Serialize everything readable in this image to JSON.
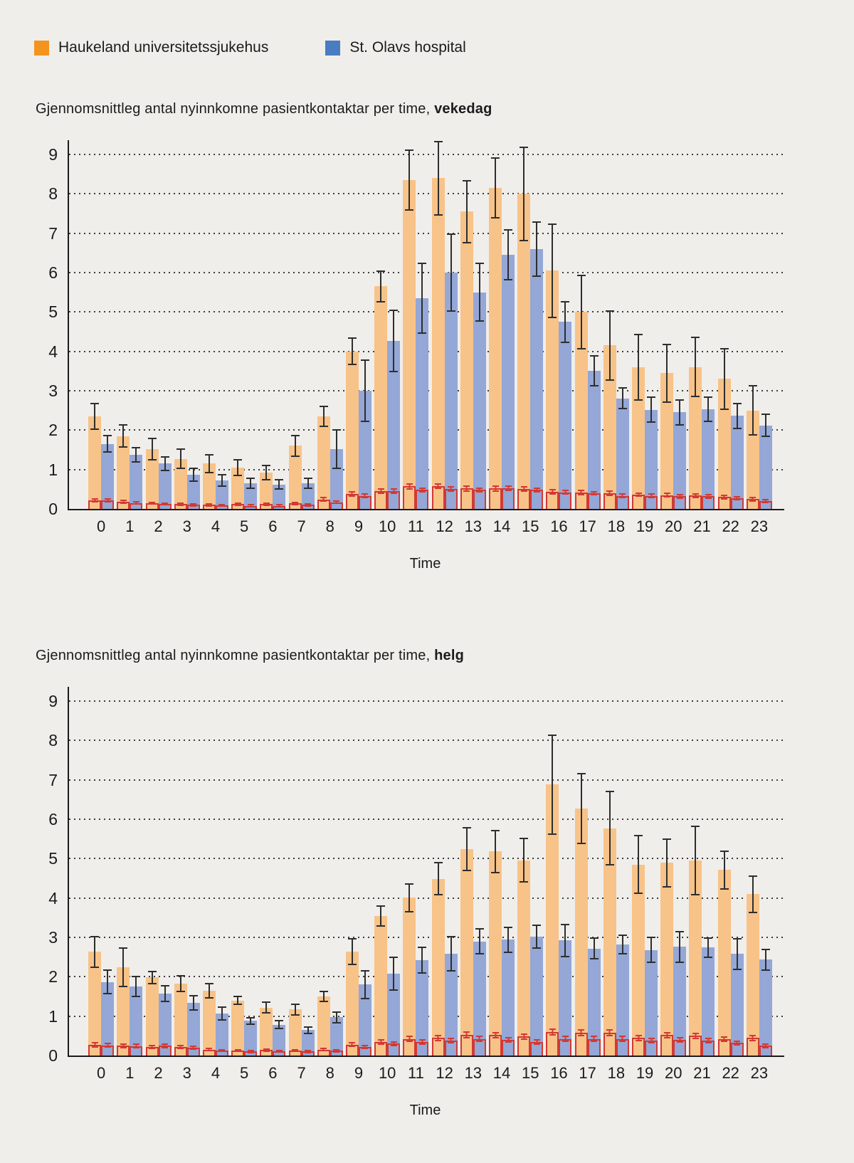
{
  "colors": {
    "background": "#f0eeeb",
    "haukeland_legend": "#f3941f",
    "stolavs_legend": "#4a7cc2",
    "haukeland_bar": "#f8c388",
    "stolavs_bar": "#94a7d6",
    "red_outline": "#d23933",
    "error_bar": "#2e2e2e"
  },
  "legend": {
    "items": [
      {
        "label": "Haukeland universitetssjukehus",
        "color": "#f3941f"
      },
      {
        "label": "St. Olavs hospital",
        "color": "#4a7cc2"
      }
    ]
  },
  "chart_data": [
    {
      "type": "bar",
      "title": "Gjennomsnittleg antal nyinnkomne pasientkontaktar per time, ",
      "title_bold": "vekedag",
      "xlabel": "Time",
      "ylim": [
        0,
        9
      ],
      "yticks": [
        0,
        1,
        2,
        3,
        4,
        5,
        6,
        7,
        8,
        9
      ],
      "grid": "dotted horizontal",
      "legend_position": "top-left of page",
      "categories": [
        "0",
        "1",
        "2",
        "3",
        "4",
        "5",
        "6",
        "7",
        "8",
        "9",
        "10",
        "11",
        "12",
        "13",
        "14",
        "15",
        "16",
        "17",
        "18",
        "19",
        "20",
        "21",
        "22",
        "23"
      ],
      "series": [
        {
          "key": "haukeland",
          "name": "Haukeland universitetssjukehus",
          "color": "#f8c388",
          "values": [
            2.35,
            1.85,
            1.52,
            1.27,
            1.15,
            1.05,
            0.92,
            1.6,
            2.35,
            4.0,
            5.65,
            8.35,
            8.4,
            7.55,
            8.15,
            8.0,
            6.05,
            5.0,
            4.15,
            3.6,
            3.45,
            3.6,
            3.3,
            2.5
          ],
          "errors": [
            0.35,
            0.3,
            0.29,
            0.26,
            0.24,
            0.22,
            0.2,
            0.28,
            0.27,
            0.35,
            0.4,
            0.78,
            0.95,
            0.8,
            0.78,
            1.2,
            1.2,
            0.95,
            0.9,
            0.85,
            0.75,
            0.77,
            0.79,
            0.64
          ],
          "red_values": [
            0.22,
            0.18,
            0.15,
            0.12,
            0.1,
            0.12,
            0.12,
            0.14,
            0.24,
            0.38,
            0.45,
            0.57,
            0.58,
            0.52,
            0.52,
            0.5,
            0.44,
            0.42,
            0.4,
            0.36,
            0.35,
            0.34,
            0.3,
            0.25
          ],
          "red_errors": [
            0.06,
            0.05,
            0.04,
            0.04,
            0.04,
            0.04,
            0.04,
            0.05,
            0.06,
            0.07,
            0.07,
            0.08,
            0.08,
            0.08,
            0.08,
            0.07,
            0.07,
            0.07,
            0.07,
            0.06,
            0.06,
            0.06,
            0.06,
            0.06
          ]
        },
        {
          "key": "stolavs",
          "name": "St. Olavs hospital",
          "color": "#94a7d6",
          "values": [
            1.65,
            1.38,
            1.15,
            0.87,
            0.72,
            0.65,
            0.62,
            0.65,
            1.52,
            3.0,
            4.27,
            5.35,
            6.0,
            5.5,
            6.45,
            6.6,
            4.75,
            3.5,
            2.81,
            2.52,
            2.45,
            2.53,
            2.36,
            2.12
          ],
          "errors": [
            0.23,
            0.2,
            0.19,
            0.18,
            0.16,
            0.15,
            0.14,
            0.14,
            0.5,
            0.8,
            0.8,
            0.9,
            1.0,
            0.75,
            0.65,
            0.7,
            0.53,
            0.4,
            0.28,
            0.33,
            0.33,
            0.32,
            0.33,
            0.3
          ],
          "red_values": [
            0.22,
            0.15,
            0.13,
            0.1,
            0.09,
            0.08,
            0.08,
            0.1,
            0.17,
            0.33,
            0.45,
            0.48,
            0.5,
            0.48,
            0.52,
            0.48,
            0.42,
            0.4,
            0.33,
            0.33,
            0.32,
            0.32,
            0.27,
            0.2
          ],
          "red_errors": [
            0.06,
            0.05,
            0.04,
            0.04,
            0.04,
            0.04,
            0.04,
            0.04,
            0.05,
            0.06,
            0.07,
            0.07,
            0.07,
            0.07,
            0.07,
            0.07,
            0.06,
            0.06,
            0.06,
            0.06,
            0.06,
            0.06,
            0.05,
            0.05
          ]
        }
      ]
    },
    {
      "type": "bar",
      "title": "Gjennomsnittleg antal nyinnkomne pasientkontaktar per time, ",
      "title_bold": "helg",
      "xlabel": "Time",
      "ylim": [
        0,
        9
      ],
      "yticks": [
        0,
        1,
        2,
        3,
        4,
        5,
        6,
        7,
        8,
        9
      ],
      "grid": "dotted horizontal",
      "legend_position": "top-left of page",
      "categories": [
        "0",
        "1",
        "2",
        "3",
        "4",
        "5",
        "6",
        "7",
        "8",
        "9",
        "10",
        "11",
        "12",
        "13",
        "14",
        "15",
        "16",
        "17",
        "18",
        "19",
        "20",
        "21",
        "22",
        "23"
      ],
      "series": [
        {
          "key": "haukeland",
          "name": "Haukeland universitetssjukehus",
          "color": "#f8c388",
          "values": [
            2.63,
            2.24,
            1.98,
            1.82,
            1.65,
            1.4,
            1.22,
            1.17,
            1.5,
            2.64,
            3.54,
            4.01,
            4.49,
            5.25,
            5.18,
            4.96,
            6.88,
            6.27,
            5.77,
            4.85,
            4.89,
            4.95,
            4.71,
            4.1
          ],
          "errors": [
            0.4,
            0.5,
            0.18,
            0.22,
            0.2,
            0.12,
            0.15,
            0.15,
            0.15,
            0.35,
            0.27,
            0.37,
            0.42,
            0.56,
            0.55,
            0.57,
            1.27,
            0.9,
            0.95,
            0.75,
            0.62,
            0.88,
            0.49,
            0.48
          ],
          "red_values": [
            0.27,
            0.25,
            0.22,
            0.22,
            0.15,
            0.13,
            0.14,
            0.13,
            0.15,
            0.28,
            0.35,
            0.42,
            0.45,
            0.52,
            0.52,
            0.48,
            0.6,
            0.58,
            0.58,
            0.45,
            0.52,
            0.5,
            0.42,
            0.45
          ],
          "red_errors": [
            0.07,
            0.06,
            0.06,
            0.06,
            0.05,
            0.04,
            0.05,
            0.04,
            0.05,
            0.06,
            0.07,
            0.08,
            0.08,
            0.09,
            0.08,
            0.08,
            0.09,
            0.09,
            0.09,
            0.08,
            0.08,
            0.08,
            0.07,
            0.08
          ]
        },
        {
          "key": "stolavs",
          "name": "St. Olavs hospital",
          "color": "#94a7d6",
          "values": [
            1.87,
            1.75,
            1.57,
            1.34,
            1.06,
            0.88,
            0.78,
            0.65,
            0.97,
            1.8,
            2.08,
            2.42,
            2.59,
            2.9,
            2.94,
            3.02,
            2.92,
            2.72,
            2.82,
            2.68,
            2.76,
            2.74,
            2.58,
            2.44
          ],
          "errors": [
            0.32,
            0.27,
            0.22,
            0.2,
            0.18,
            0.1,
            0.12,
            0.1,
            0.15,
            0.37,
            0.44,
            0.34,
            0.45,
            0.33,
            0.34,
            0.31,
            0.43,
            0.28,
            0.25,
            0.33,
            0.41,
            0.26,
            0.41,
            0.28
          ],
          "red_values": [
            0.26,
            0.24,
            0.25,
            0.2,
            0.13,
            0.1,
            0.11,
            0.1,
            0.12,
            0.22,
            0.3,
            0.35,
            0.38,
            0.42,
            0.4,
            0.35,
            0.42,
            0.42,
            0.42,
            0.38,
            0.4,
            0.38,
            0.32,
            0.25
          ],
          "red_errors": [
            0.06,
            0.06,
            0.06,
            0.05,
            0.04,
            0.04,
            0.04,
            0.04,
            0.04,
            0.06,
            0.06,
            0.07,
            0.07,
            0.08,
            0.07,
            0.07,
            0.08,
            0.08,
            0.08,
            0.07,
            0.07,
            0.07,
            0.06,
            0.06
          ]
        }
      ]
    }
  ]
}
